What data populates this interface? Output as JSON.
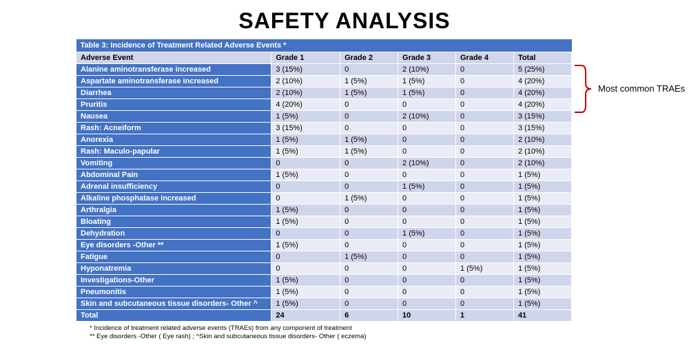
{
  "title": "SAFETY ANALYSIS",
  "table": {
    "title": "Table 3: Incidence of Treatment Related Adverse Events *",
    "columns": [
      "Adverse Event",
      "Grade 1",
      "Grade 2",
      "Grade 3",
      "Grade 4",
      "Total"
    ],
    "rows": [
      {
        "label": "Alanine aminotransferase increased",
        "g1": "3 (15%)",
        "g2": "0",
        "g3": "2 (10%)",
        "g4": "0",
        "tot": "5 (25%)"
      },
      {
        "label": "Aspartate aminotransferase increased",
        "g1": "2 (10%)",
        "g2": "1 (5%)",
        "g3": "1 (5%)",
        "g4": "0",
        "tot": "4 (20%)"
      },
      {
        "label": "Diarrhea",
        "g1": "2 (10%)",
        "g2": "1 (5%)",
        "g3": "1 (5%)",
        "g4": "0",
        "tot": "4 (20%)"
      },
      {
        "label": "Pruritis",
        "g1": "4 (20%)",
        "g2": "0",
        "g3": "0",
        "g4": "0",
        "tot": "4 (20%)"
      },
      {
        "label": "Nausea",
        "g1": "1 (5%)",
        "g2": "0",
        "g3": "2 (10%)",
        "g4": "0",
        "tot": "3 (15%)"
      },
      {
        "label": "Rash: Acneiform",
        "g1": "3 (15%)",
        "g2": "0",
        "g3": "0",
        "g4": "0",
        "tot": "3 (15%)"
      },
      {
        "label": "Anorexia",
        "g1": "1 (5%)",
        "g2": "1 (5%)",
        "g3": "0",
        "g4": "0",
        "tot": "2 (10%)"
      },
      {
        "label": "Rash: Maculo-papular",
        "g1": "1 (5%)",
        "g2": "1 (5%)",
        "g3": "0",
        "g4": "0",
        "tot": "2 (10%)"
      },
      {
        "label": "Vomiting",
        "g1": "0",
        "g2": "0",
        "g3": "2 (10%)",
        "g4": "0",
        "tot": "2 (10%)"
      },
      {
        "label": "Abdominal Pain",
        "g1": "1 (5%)",
        "g2": "0",
        "g3": "0",
        "g4": "0",
        "tot": "1 (5%)"
      },
      {
        "label": "Adrenal insufficiency",
        "g1": "0",
        "g2": "0",
        "g3": "1 (5%)",
        "g4": "0",
        "tot": "1 (5%)"
      },
      {
        "label": "Alkaline phosphatase increased",
        "g1": "0",
        "g2": "1 (5%)",
        "g3": "0",
        "g4": "0",
        "tot": "1 (5%)"
      },
      {
        "label": "Arthralgia",
        "g1": "1 (5%)",
        "g2": "0",
        "g3": "0",
        "g4": "0",
        "tot": "1 (5%)"
      },
      {
        "label": "Bloating",
        "g1": "1 (5%)",
        "g2": "0",
        "g3": "0",
        "g4": "0",
        "tot": "1 (5%)"
      },
      {
        "label": "Dehydration",
        "g1": "0",
        "g2": "0",
        "g3": "1 (5%)",
        "g4": "0",
        "tot": "1 (5%)"
      },
      {
        "label": "Eye disorders -Other **",
        "g1": "1 (5%)",
        "g2": "0",
        "g3": "0",
        "g4": "0",
        "tot": "1 (5%)"
      },
      {
        "label": "Fatigue",
        "g1": "0",
        "g2": "1 (5%)",
        "g3": "0",
        "g4": "0",
        "tot": "1 (5%)"
      },
      {
        "label": "Hyponatremia",
        "g1": "0",
        "g2": "0",
        "g3": "0",
        "g4": "1 (5%)",
        "tot": "1 (5%)"
      },
      {
        "label": "Investigations-Other",
        "g1": "1 (5%)",
        "g2": "0",
        "g3": "0",
        "g4": "0",
        "tot": "1 (5%)"
      },
      {
        "label": "Pneumonitis",
        "g1": "1 (5%)",
        "g2": "0",
        "g3": "0",
        "g4": "0",
        "tot": "1 (5%)"
      },
      {
        "label": "Skin and subcutaneous tissue disorders- Other ^",
        "g1": "1 (5%)",
        "g2": "0",
        "g3": "0",
        "g4": "0",
        "tot": "1 (5%)"
      }
    ],
    "total_row": {
      "label": "Total",
      "g1": "24",
      "g2": "6",
      "g3": "10",
      "g4": "1",
      "tot": "41"
    },
    "colors": {
      "header_bg": "#4472c4",
      "header_fg": "#ffffff",
      "col_header_bg": "#cfd5ea",
      "row_odd_bg": "#cfd5ea",
      "row_even_bg": "#e9ebf5",
      "border": "#ffffff"
    },
    "font_size_pt": 11
  },
  "footnotes": {
    "l1": "* Incidence of treatment related adverse events (TRAEs) from any component of treatment",
    "l2": "**  Eye disorders -Other ( Eye rash) ; ^Skin and subcutaneous tissue disorders- Other ( eczema)"
  },
  "annotation": {
    "text": "Most common TRAEs",
    "bracket_color": "#c00000",
    "bracket_stroke": 2,
    "rows_span": [
      0,
      3
    ]
  }
}
